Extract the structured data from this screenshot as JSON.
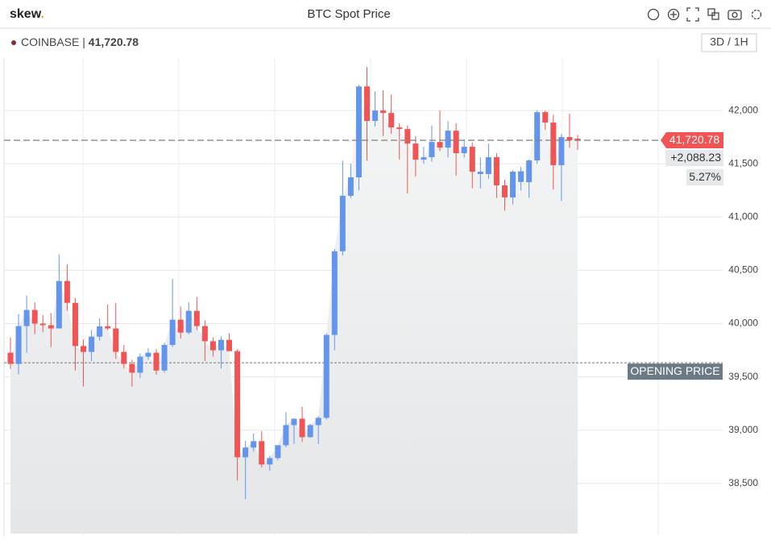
{
  "header": {
    "brand": "skew",
    "brand_dot": ".",
    "title": "BTC Spot Price"
  },
  "chart_data": {
    "type": "candlestick",
    "exchange": "COINBASE",
    "separator": "|",
    "price": {
      "value": 41720.78,
      "label": "41,720.78"
    },
    "interval_button": "3D / 1H",
    "last_price": {
      "value": 41720.78,
      "label": "41,720.78"
    },
    "change": {
      "value": 2088.23,
      "label": "+2,088.23"
    },
    "change_pct": {
      "value": 5.27,
      "label": "5.27%"
    },
    "opening_price": 39632.55,
    "opening_label": "OPENING PRICE",
    "up_color": "#6495ed",
    "down_color": "#f05454",
    "ylim": [
      38030,
      42470
    ],
    "yticks": [
      {
        "value": 38500,
        "label": "38,500"
      },
      {
        "value": 39000,
        "label": "39,000"
      },
      {
        "value": 39500,
        "label": "39,500"
      },
      {
        "value": 40000,
        "label": "40,000"
      },
      {
        "value": 40500,
        "label": "40,500"
      },
      {
        "value": 41000,
        "label": "41,000"
      },
      {
        "value": 41500,
        "label": "41,500"
      },
      {
        "value": 42000,
        "label": "42,000"
      }
    ],
    "grid": true,
    "open": [
      39727,
      39622,
      39977,
      40128,
      40000,
      39985,
      39955,
      40400,
      40195,
      39790,
      39735,
      39878,
      39975,
      39955,
      39735,
      39622,
      39540,
      39690,
      39727,
      39560,
      39800,
      40037,
      39916,
      40120,
      39977,
      39835,
      39750,
      39848,
      39742,
      38746,
      38837,
      38897,
      38678,
      38738,
      38859,
      39048,
      39108,
      38935,
      39048,
      39116,
      39894,
      40679,
      41200,
      41373,
      42226,
      41902,
      42000,
      41977,
      41841,
      41826,
      41690,
      41539,
      41562,
      41705,
      41652,
      41811,
      41600,
      41660,
      41404,
      41404,
      41562,
      41298,
      41185,
      41330,
      41328,
      41532,
      41985,
      41887,
      41487,
      41751,
      41736
    ],
    "high": [
      39871,
      40090,
      40263,
      40200,
      40080,
      40100,
      40650,
      40558,
      40240,
      39850,
      39940,
      40050,
      40180,
      40195,
      39800,
      39660,
      39720,
      39770,
      39760,
      39820,
      40420,
      40160,
      40200,
      40250,
      40030,
      39870,
      39880,
      39910,
      39760,
      38900,
      38970,
      38990,
      38760,
      38860,
      39170,
      39110,
      39220,
      39060,
      39130,
      39910,
      40700,
      41530,
      41500,
      42240,
      42408,
      42180,
      42190,
      42150,
      41880,
      41860,
      41760,
      41660,
      41860,
      42000,
      41900,
      41880,
      41730,
      41700,
      41560,
      41690,
      41600,
      41350,
      41440,
      41470,
      41540,
      42000,
      42000,
      41960,
      41780,
      41970,
      41770
    ],
    "low": [
      39577,
      39524,
      39727,
      39900,
      39920,
      39780,
      39955,
      40120,
      39560,
      39410,
      39650,
      39840,
      39940,
      39670,
      39580,
      39410,
      39490,
      39660,
      39520,
      39540,
      39780,
      39860,
      39900,
      39940,
      39650,
      39690,
      39580,
      39780,
      38527,
      38353,
      38800,
      38650,
      38620,
      38720,
      38840,
      38870,
      38890,
      38930,
      38870,
      39100,
      39750,
      40640,
      41180,
      41250,
      41530,
      41850,
      41760,
      41780,
      41540,
      41222,
      41380,
      41500,
      41520,
      41620,
      41560,
      41390,
      41560,
      41270,
      41270,
      41360,
      41180,
      41060,
      41120,
      41250,
      41180,
      41500,
      41820,
      41260,
      41150,
      41650,
      41630
    ],
    "close": [
      39622,
      39977,
      40128,
      40000,
      39985,
      39955,
      40400,
      40195,
      39790,
      39735,
      39878,
      39975,
      39955,
      39735,
      39622,
      39540,
      39690,
      39727,
      39560,
      39800,
      40037,
      39916,
      40120,
      39977,
      39835,
      39750,
      39848,
      39742,
      38746,
      38837,
      38897,
      38678,
      38738,
      38859,
      39048,
      39108,
      38935,
      39048,
      39116,
      39894,
      40679,
      41200,
      41373,
      42226,
      41902,
      42000,
      41977,
      41841,
      41826,
      41690,
      41539,
      41562,
      41705,
      41652,
      41811,
      41600,
      41660,
      41426,
      41426,
      41562,
      41298,
      41185,
      41426,
      41430,
      41532,
      41985,
      41887,
      41487,
      41751,
      41721,
      41720.78
    ]
  }
}
